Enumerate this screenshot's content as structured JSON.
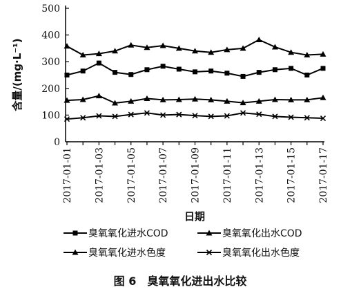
{
  "chart_data": {
    "type": "line",
    "x": [
      "2017-01-01",
      "2017-01-02",
      "2017-01-03",
      "2017-01-04",
      "2017-01-05",
      "2017-01-06",
      "2017-01-07",
      "2017-01-08",
      "2017-01-09",
      "2017-01-10",
      "2017-01-11",
      "2017-01-12",
      "2017-01-13",
      "2017-01-14",
      "2017-01-15",
      "2017-01-16",
      "2017-01-17"
    ],
    "x_tick_labels": [
      "2017-01-01",
      "2017-01-03",
      "2017-01-05",
      "2017-01-07",
      "2017-01-09",
      "2017-01-11",
      "2017-01-13",
      "2017-01-15",
      "2017-01-17"
    ],
    "y_ticks": [
      0,
      100,
      200,
      300,
      400,
      500
    ],
    "ylim": [
      0,
      500
    ],
    "xlabel": "日期",
    "ylabel": "含量/(mg·L⁻¹)",
    "grid": false,
    "legend_position": "bottom",
    "series": [
      {
        "name": "臭氧氧化进水COD",
        "marker": "square",
        "values": [
          250,
          265,
          295,
          260,
          252,
          270,
          283,
          272,
          262,
          265,
          257,
          245,
          260,
          270,
          275,
          250,
          275
        ]
      },
      {
        "name": "臭氧氧化出水COD",
        "marker": "triangle",
        "values": [
          155,
          158,
          172,
          145,
          152,
          162,
          157,
          158,
          160,
          157,
          152,
          146,
          152,
          158,
          157,
          157,
          165
        ]
      },
      {
        "name": "臭氧氧化进水色度",
        "marker": "triangle",
        "values": [
          358,
          325,
          330,
          340,
          362,
          353,
          360,
          350,
          340,
          335,
          345,
          350,
          382,
          355,
          335,
          325,
          328
        ]
      },
      {
        "name": "臭氧氧化出水色度",
        "marker": "cross",
        "values": [
          85,
          90,
          97,
          95,
          102,
          108,
          100,
          102,
          98,
          95,
          97,
          108,
          103,
          95,
          92,
          90,
          88
        ]
      }
    ]
  },
  "figure": {
    "caption": "图 6　臭氧氧化进出水比较"
  }
}
